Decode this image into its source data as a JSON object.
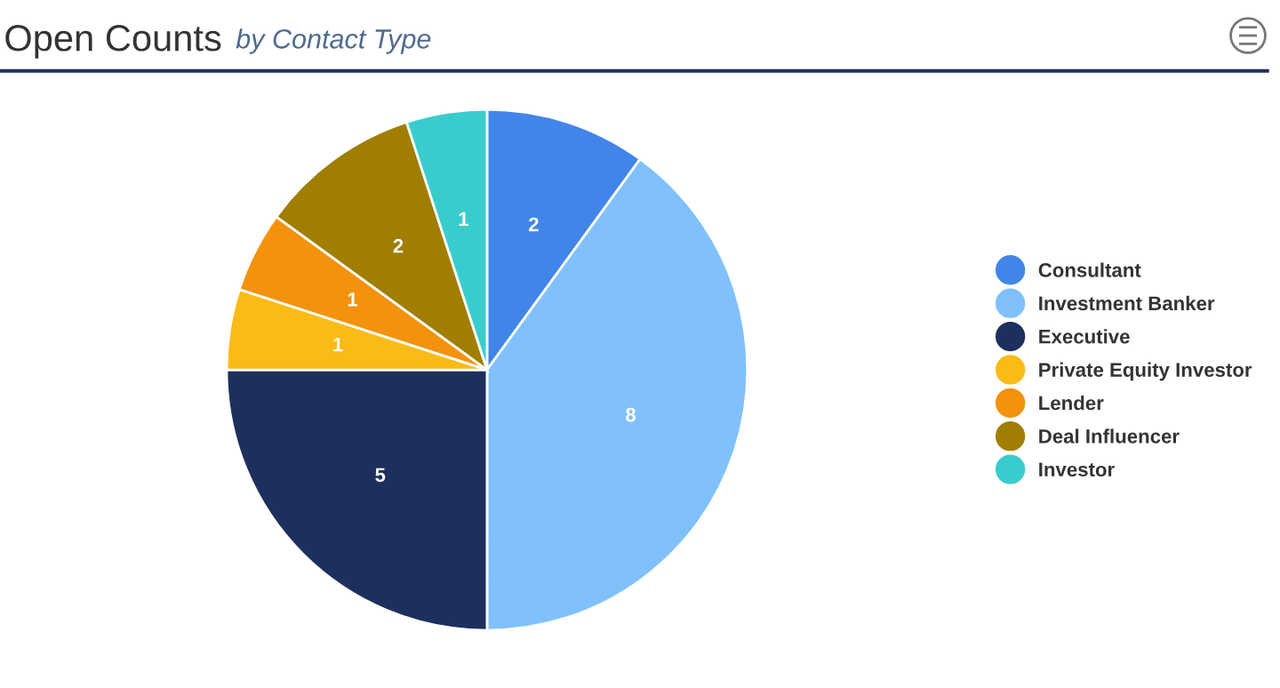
{
  "chart_data": {
    "type": "pie",
    "title": "Open Counts",
    "subtitle": "by Contact Type",
    "categories": [
      "Consultant",
      "Investment Banker",
      "Executive",
      "Private Equity Investor",
      "Lender",
      "Deal Influencer",
      "Investor"
    ],
    "values": [
      2,
      8,
      5,
      1,
      1,
      2,
      1
    ],
    "colors": [
      "#4285e8",
      "#80c1fd",
      "#1d2f5c",
      "#fbbb17",
      "#f3920d",
      "#a07e00",
      "#38cdcc"
    ],
    "data_labels": true,
    "legend": "right"
  }
}
